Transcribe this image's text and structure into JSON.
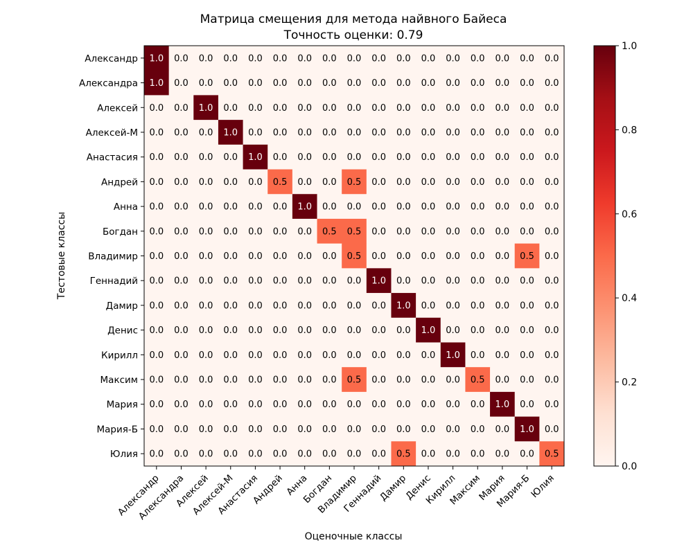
{
  "chart_data": {
    "type": "heatmap",
    "title": "Матрица смещения для метода найвного Байеса",
    "subtitle": "Точность оценки: 0.79",
    "xlabel": "Оценочные классы",
    "ylabel": "Тестовые классы",
    "x_categories": [
      "Александр",
      "Александра",
      "Алексей",
      "Алексей-М",
      "Анастасия",
      "Андрей",
      "Анна",
      "Богдан",
      "Владимир",
      "Геннадий",
      "Дамир",
      "Денис",
      "Кирилл",
      "Максим",
      "Мария",
      "Мария-Б",
      "Юлия"
    ],
    "y_categories": [
      "Александр",
      "Александра",
      "Алексей",
      "Алексей-М",
      "Анастасия",
      "Андрей",
      "Анна",
      "Богдан",
      "Владимир",
      "Геннадий",
      "Дамир",
      "Денис",
      "Кирилл",
      "Максим",
      "Мария",
      "Мария-Б",
      "Юлия"
    ],
    "values": [
      [
        1.0,
        0,
        0,
        0,
        0,
        0,
        0,
        0,
        0,
        0,
        0,
        0,
        0,
        0,
        0,
        0,
        0
      ],
      [
        1.0,
        0,
        0,
        0,
        0,
        0,
        0,
        0,
        0,
        0,
        0,
        0,
        0,
        0,
        0,
        0,
        0
      ],
      [
        0,
        0,
        1.0,
        0,
        0,
        0,
        0,
        0,
        0,
        0,
        0,
        0,
        0,
        0,
        0,
        0,
        0
      ],
      [
        0,
        0,
        0,
        1.0,
        0,
        0,
        0,
        0,
        0,
        0,
        0,
        0,
        0,
        0,
        0,
        0,
        0
      ],
      [
        0,
        0,
        0,
        0,
        1.0,
        0,
        0,
        0,
        0,
        0,
        0,
        0,
        0,
        0,
        0,
        0,
        0
      ],
      [
        0,
        0,
        0,
        0,
        0,
        0.5,
        0,
        0,
        0.5,
        0,
        0,
        0,
        0,
        0,
        0,
        0,
        0
      ],
      [
        0,
        0,
        0,
        0,
        0,
        0,
        1.0,
        0,
        0,
        0,
        0,
        0,
        0,
        0,
        0,
        0,
        0
      ],
      [
        0,
        0,
        0,
        0,
        0,
        0,
        0,
        0.5,
        0.5,
        0,
        0,
        0,
        0,
        0,
        0,
        0,
        0
      ],
      [
        0,
        0,
        0,
        0,
        0,
        0,
        0,
        0,
        0.5,
        0,
        0,
        0,
        0,
        0,
        0,
        0.5,
        0
      ],
      [
        0,
        0,
        0,
        0,
        0,
        0,
        0,
        0,
        0,
        1.0,
        0,
        0,
        0,
        0,
        0,
        0,
        0
      ],
      [
        0,
        0,
        0,
        0,
        0,
        0,
        0,
        0,
        0,
        0,
        1.0,
        0,
        0,
        0,
        0,
        0,
        0
      ],
      [
        0,
        0,
        0,
        0,
        0,
        0,
        0,
        0,
        0,
        0,
        0,
        1.0,
        0,
        0,
        0,
        0,
        0
      ],
      [
        0,
        0,
        0,
        0,
        0,
        0,
        0,
        0,
        0,
        0,
        0,
        0,
        1.0,
        0,
        0,
        0,
        0
      ],
      [
        0,
        0,
        0,
        0,
        0,
        0,
        0,
        0,
        0.5,
        0,
        0,
        0,
        0,
        0.5,
        0,
        0,
        0
      ],
      [
        0,
        0,
        0,
        0,
        0,
        0,
        0,
        0,
        0,
        0,
        0,
        0,
        0,
        0,
        1.0,
        0,
        0
      ],
      [
        0,
        0,
        0,
        0,
        0,
        0,
        0,
        0,
        0,
        0,
        0,
        0,
        0,
        0,
        0,
        1.0,
        0
      ],
      [
        0,
        0,
        0,
        0,
        0,
        0,
        0,
        0,
        0,
        0,
        0.5,
        0,
        0,
        0,
        0,
        0,
        0.5
      ]
    ],
    "value_format": "0.0",
    "vmin": 0.0,
    "vmax": 1.0,
    "colormap": "Reds",
    "colorbar_ticks": [
      "0.0",
      "0.2",
      "0.4",
      "0.6",
      "0.8",
      "1.0"
    ],
    "colorbar_tick_values": [
      0.0,
      0.2,
      0.4,
      0.6,
      0.8,
      1.0
    ]
  }
}
